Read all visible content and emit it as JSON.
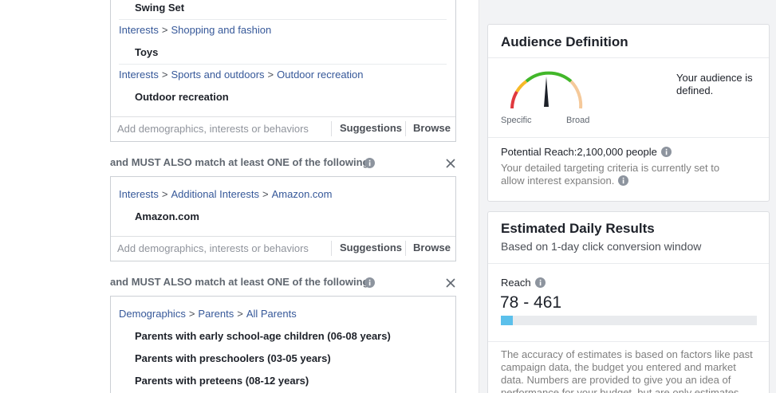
{
  "targeting": {
    "breadcrumb_separator": ">",
    "groups": [
      {
        "entries": [
          {
            "names": [
              "Swing Set"
            ]
          },
          {
            "breadcrumb": [
              "Interests",
              "Shopping and fashion"
            ],
            "names": [
              "Toys"
            ]
          },
          {
            "breadcrumb": [
              "Interests",
              "Sports and outdoors",
              "Outdoor recreation"
            ],
            "names": [
              "Outdoor recreation"
            ]
          }
        ],
        "input": {
          "placeholder": "Add demographics, interests or behaviors",
          "suggestions": "Suggestions",
          "browse": "Browse"
        }
      },
      {
        "header": "and MUST ALSO match at least ONE of the following",
        "entries": [
          {
            "breadcrumb": [
              "Interests",
              "Additional Interests",
              "Amazon.com"
            ],
            "names": [
              "Amazon.com"
            ]
          }
        ],
        "input": {
          "placeholder": "Add demographics, interests or behaviors",
          "suggestions": "Suggestions",
          "browse": "Browse"
        }
      },
      {
        "header": "and MUST ALSO match at least ONE of the following",
        "entries": [
          {
            "breadcrumb": [
              "Demographics",
              "Parents",
              "All Parents"
            ],
            "names": [
              "Parents with early school-age children (06-08 years)",
              "Parents with preschoolers (03-05 years)",
              "Parents with preteens (08-12 years)"
            ]
          }
        ]
      }
    ]
  },
  "audience_definition": {
    "title": "Audience Definition",
    "status": "Your audience is defined.",
    "gauge_low": "Specific",
    "gauge_high": "Broad",
    "potential_reach": "Potential Reach:2,100,000 people",
    "note": "Your detailed targeting criteria is currently set to allow interest expansion."
  },
  "estimated_daily_results": {
    "title": "Estimated Daily Results",
    "subtitle": "Based on 1-day click conversion window",
    "reach_label": "Reach",
    "reach_value": "78 - 461",
    "disclaimer": "The accuracy of estimates is based on factors like past campaign data, the budget you entered and market data. Numbers are provided to give you an idea of performance for your budget, but are only estimates"
  }
}
